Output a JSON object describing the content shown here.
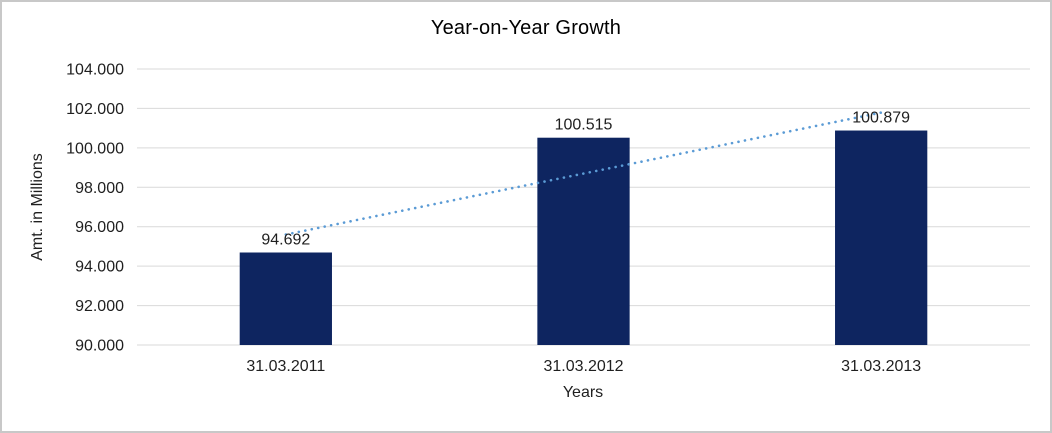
{
  "window": {
    "background": "#FFFFFF",
    "border_color": "#C8C8C8"
  },
  "chart_data": {
    "type": "bar",
    "title": "Year-on-Year Growth",
    "xlabel": "Years",
    "ylabel": "Amt. in Millions",
    "categories": [
      "31.03.2011",
      "31.03.2012",
      "31.03.2013"
    ],
    "values": [
      94.692,
      100.515,
      100.879
    ],
    "data_labels": [
      "94.692",
      "100.515",
      "100.879"
    ],
    "ylim": [
      90,
      104
    ],
    "ytick_step": 2,
    "ytick_labels": [
      "90.000",
      "92.000",
      "94.000",
      "96.000",
      "98.000",
      "100.000",
      "102.000",
      "104.000"
    ],
    "grid": true,
    "legend": "none",
    "trendline": {
      "kind": "linear",
      "style": "dotted"
    },
    "colors": {
      "bar": "#0E2560",
      "trendline": "#5B9BD5",
      "gridline": "#D9D9D9",
      "axis_line": "#D9D9D9",
      "label_text": "#1F1F1F",
      "title_text": "#000000"
    }
  }
}
